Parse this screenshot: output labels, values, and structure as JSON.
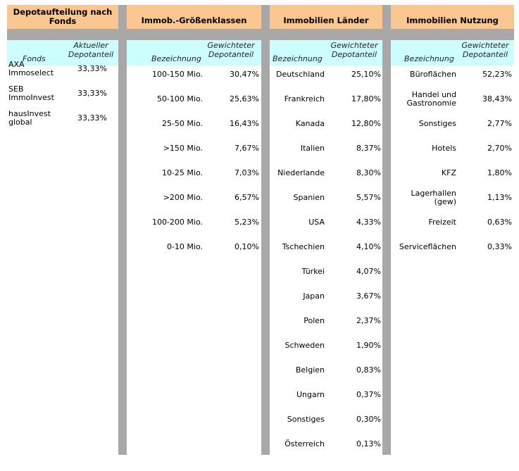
{
  "fonds": {
    "header": "Depotaufteilung nach Fonds",
    "col_a": "Fonds",
    "col_b": "Aktueller Depotanteil",
    "rows": [
      {
        "label": "AXA Immoselect",
        "value": "33,33%"
      },
      {
        "label": "SEB ImmoInvest",
        "value": "33,33%"
      },
      {
        "label": "hausInvest global",
        "value": "33,33%"
      }
    ]
  },
  "groesse": {
    "header": "Immob.-Größenklassen",
    "col_a": "Bezeichnung",
    "col_b": "Gewichteter Depotanteil",
    "rows": [
      {
        "label": "100-150 Mio.",
        "value": "30,47%"
      },
      {
        "label": "50-100 Mio.",
        "value": "25,63%"
      },
      {
        "label": "25-50 Mio.",
        "value": "16,43%"
      },
      {
        "label": ">150 Mio.",
        "value": "7,67%"
      },
      {
        "label": "10-25 Mio.",
        "value": "7,03%"
      },
      {
        "label": ">200 Mio.",
        "value": "6,57%"
      },
      {
        "label": "100-200 Mio.",
        "value": "5,23%"
      },
      {
        "label": "0-10 Mio.",
        "value": "0,10%"
      }
    ]
  },
  "laender": {
    "header": "Immobilien Länder",
    "col_a": "Bezeichnung",
    "col_b": "Gewichteter Depotanteil",
    "rows": [
      {
        "label": "Deutschland",
        "value": "25,10%"
      },
      {
        "label": "Frankreich",
        "value": "17,80%"
      },
      {
        "label": "Kanada",
        "value": "12,80%"
      },
      {
        "label": "Italien",
        "value": "8,37%"
      },
      {
        "label": "Niederlande",
        "value": "8,30%"
      },
      {
        "label": "Spanien",
        "value": "5,57%"
      },
      {
        "label": "USA",
        "value": "4,33%"
      },
      {
        "label": "Tschechien",
        "value": "4,10%"
      },
      {
        "label": "Türkei",
        "value": "4,07%"
      },
      {
        "label": "Japan",
        "value": "3,67%"
      },
      {
        "label": "Polen",
        "value": "2,37%"
      },
      {
        "label": "Schweden",
        "value": "1,90%"
      },
      {
        "label": "Belgien",
        "value": "0,83%"
      },
      {
        "label": "Ungarn",
        "value": "0,37%"
      },
      {
        "label": "Sonstiges",
        "value": "0,30%"
      },
      {
        "label": "Österreich",
        "value": "0,13%"
      }
    ]
  },
  "nutzung": {
    "header": "Immobilien Nutzung",
    "col_a": "Bezeichnung",
    "col_b": "Gewichteter Depotanteil",
    "rows": [
      {
        "label": "Büroflächen",
        "value": "52,23%"
      },
      {
        "label": "Handel und Gastronomie",
        "value": "38,43%"
      },
      {
        "label": "Sonstiges",
        "value": "2,77%"
      },
      {
        "label": "Hotels",
        "value": "2,70%"
      },
      {
        "label": "KFZ",
        "value": "1,80%"
      },
      {
        "label": "Lagerhallen (gew)",
        "value": "1,13%"
      },
      {
        "label": "Freizeit",
        "value": "0,63%"
      },
      {
        "label": "Serviceflächen",
        "value": "0,33%"
      }
    ]
  },
  "colors": {
    "header_bg": "#fcc690",
    "subheader_bg": "#cdfefe",
    "separator": "#a8a8a8"
  }
}
